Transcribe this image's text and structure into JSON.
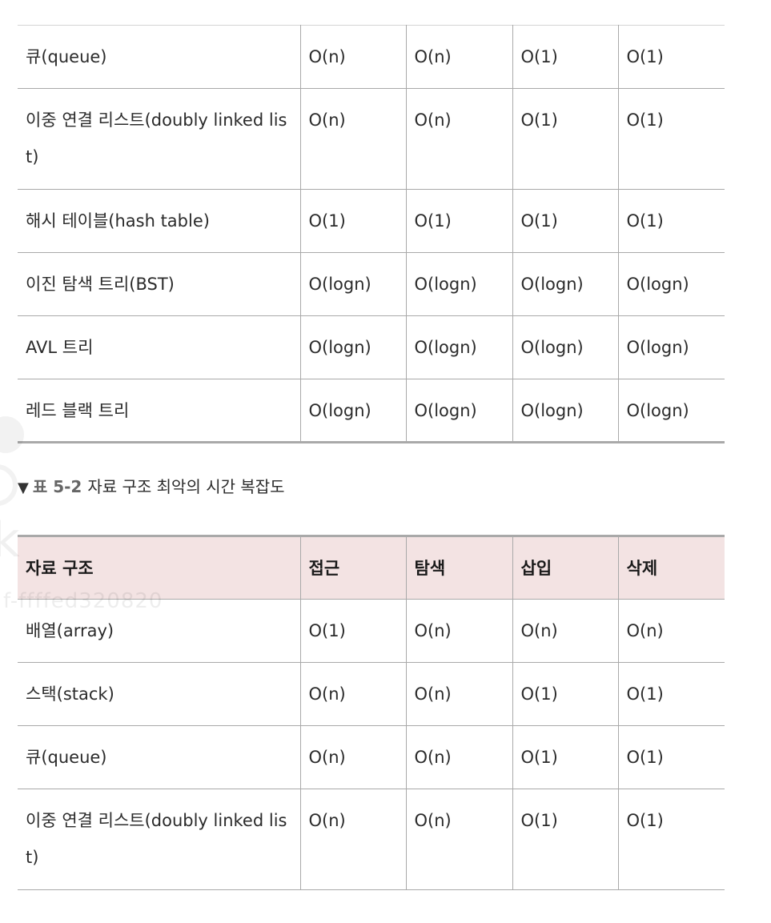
{
  "table1": {
    "rows": [
      [
        "큐(queue)",
        "O(n)",
        "O(n)",
        "O(1)",
        "O(1)"
      ],
      [
        "이중 연결 리스트(doubly linked list)",
        "O(n)",
        "O(n)",
        "O(1)",
        "O(1)"
      ],
      [
        "해시 테이블(hash table)",
        "O(1)",
        "O(1)",
        "O(1)",
        "O(1)"
      ],
      [
        "이진 탐색 트리(BST)",
        "O(logn)",
        "O(logn)",
        "O(logn)",
        "O(logn)"
      ],
      [
        "AVL 트리",
        "O(logn)",
        "O(logn)",
        "O(logn)",
        "O(logn)"
      ],
      [
        "레드 블랙 트리",
        "O(logn)",
        "O(logn)",
        "O(logn)",
        "O(logn)"
      ]
    ]
  },
  "caption": {
    "marker": "▼",
    "number": "표 5-2",
    "text": "자료 구조 최악의 시간 복잡도"
  },
  "table2": {
    "headers": [
      "자료 구조",
      "접근",
      "탐색",
      "삽입",
      "삭제"
    ],
    "rows": [
      [
        "배열(array)",
        "O(1)",
        "O(n)",
        "O(n)",
        "O(n)"
      ],
      [
        "스택(stack)",
        "O(n)",
        "O(n)",
        "O(1)",
        "O(1)"
      ],
      [
        "큐(queue)",
        "O(n)",
        "O(n)",
        "O(1)",
        "O(1)"
      ],
      [
        "이중 연결 리스트(doubly linked list)",
        "O(n)",
        "O(n)",
        "O(1)",
        "O(1)"
      ]
    ]
  },
  "watermark": {
    "text": "f-ffffed320820",
    "letter": "k"
  },
  "colors": {
    "header_bg": "#f3e3e3",
    "border": "#a9a9a9",
    "text": "#2b2b2b"
  }
}
